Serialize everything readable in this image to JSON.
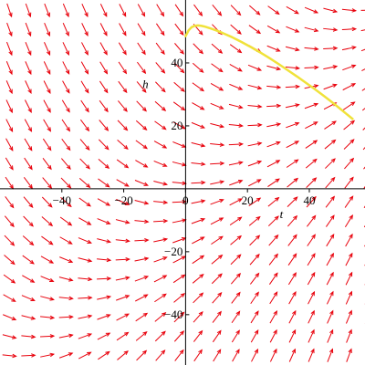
{
  "chart_data": {
    "type": "direction_field",
    "title": "",
    "xlabel": "t",
    "ylabel": "h",
    "xlim": [
      -60,
      58
    ],
    "ylim": [
      -56,
      60
    ],
    "x_ticks": [
      -40,
      -20,
      0,
      20,
      40
    ],
    "y_ticks": [
      -40,
      -20,
      20,
      40
    ],
    "x_tick_labels": [
      "−40",
      "−20",
      "0",
      "20",
      "40"
    ],
    "y_tick_labels": [
      "−40",
      "−20",
      "20",
      "40"
    ],
    "grid": false,
    "field_color": "#e8000b",
    "curve_color": "#f0e23a",
    "field_grid": {
      "x_start": -57,
      "x_step": 6.1,
      "x_count": 20,
      "y_start": -53,
      "y_step": 6.1,
      "y_count": 19
    },
    "solution_curve": {
      "name": "",
      "x": [
        0,
        1,
        2,
        3,
        4,
        5,
        6,
        8,
        10,
        12,
        15,
        18,
        21,
        24,
        27,
        30,
        33,
        36,
        39,
        42,
        45,
        48,
        51,
        54
      ],
      "y": [
        48.5,
        50.4,
        51.4,
        51.8,
        51.9,
        51.8,
        51.6,
        51.0,
        50.3,
        49.5,
        48.2,
        46.7,
        45.1,
        43.4,
        41.6,
        39.7,
        37.7,
        35.7,
        33.6,
        31.5,
        29.3,
        27.0,
        24.6,
        22.2
      ]
    }
  }
}
